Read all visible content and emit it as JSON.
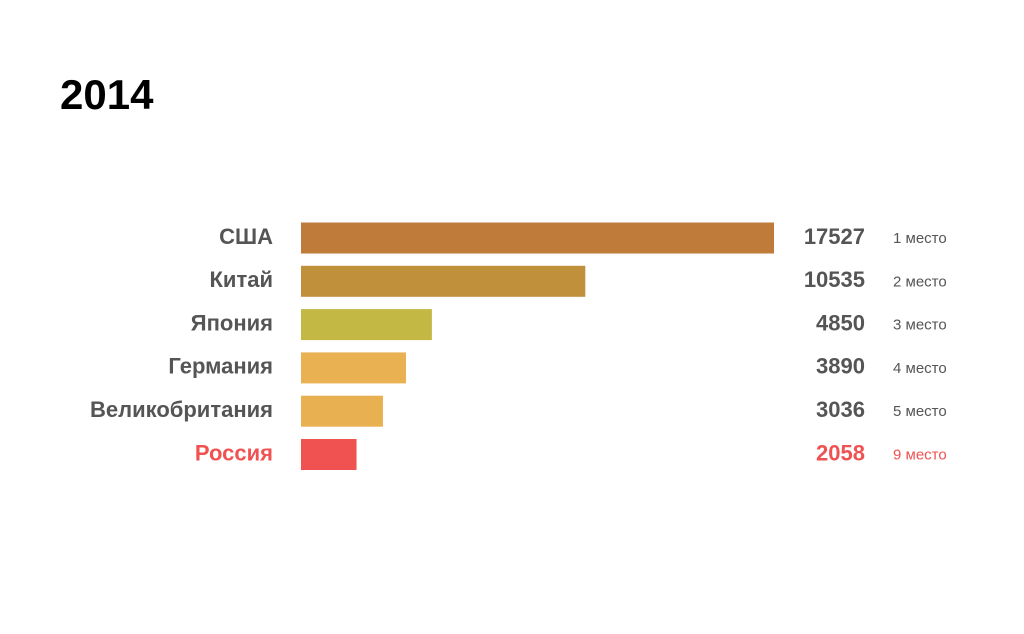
{
  "chart_data": {
    "type": "hbar",
    "title": "2014",
    "categories": [
      "США",
      "Китай",
      "Япония",
      "Германия",
      "Великобритания",
      "Россия"
    ],
    "values": [
      17527,
      10535,
      4850,
      3890,
      3036,
      2058
    ],
    "ranks": [
      "1 место",
      "2 место",
      "3 место",
      "4 место",
      "5 место",
      "9 место"
    ],
    "colors": [
      "#bf7b3a",
      "#c0903b",
      "#c2b843",
      "#eab152",
      "#e9b052",
      "#f05252"
    ],
    "label_colors": [
      "#555555",
      "#555555",
      "#555555",
      "#555555",
      "#555555",
      "#f05252"
    ]
  }
}
